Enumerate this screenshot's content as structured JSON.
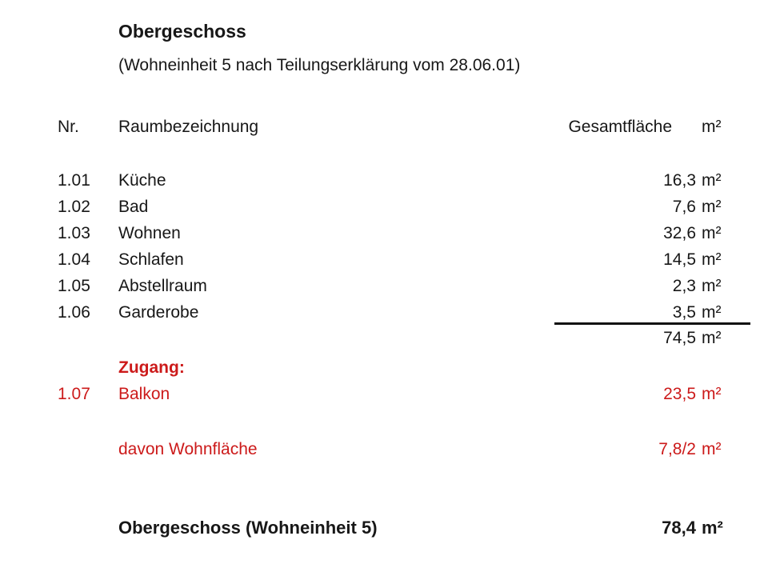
{
  "header": {
    "title": "Obergeschoss",
    "subtitle": "(Wohneinheit 5 nach Teilungserklärung vom 28.06.01)"
  },
  "table": {
    "columns": {
      "nr": "Nr.",
      "name": "Raumbezeichnung",
      "area": "Gesamtfläche",
      "unit": "m²"
    },
    "rows": [
      {
        "nr": "1.01",
        "name": "Küche",
        "value": "16,3",
        "unit": "m²"
      },
      {
        "nr": "1.02",
        "name": "Bad",
        "value": "7,6",
        "unit": "m²"
      },
      {
        "nr": "1.03",
        "name": "Wohnen",
        "value": "32,6",
        "unit": "m²"
      },
      {
        "nr": "1.04",
        "name": "Schlafen",
        "value": "14,5",
        "unit": "m²"
      },
      {
        "nr": "1.05",
        "name": "Abstellraum",
        "value": "2,3",
        "unit": "m²"
      },
      {
        "nr": "1.06",
        "name": "Garderobe",
        "value": "3,5",
        "unit": "m²"
      }
    ],
    "subtotal": {
      "value": "74,5",
      "unit": "m²"
    },
    "zugang": {
      "label": "Zugang:",
      "rows": [
        {
          "nr": "1.07",
          "name": "Balkon",
          "value": "23,5",
          "unit": "m²"
        },
        {
          "nr": "",
          "name": "davon Wohnfläche",
          "value": "7,8/2",
          "unit": "m²"
        }
      ]
    },
    "total": {
      "label": "Obergeschoss (Wohneinheit 5)",
      "value": "78,4",
      "unit": "m²"
    }
  },
  "colors": {
    "accent_red": "#cc1a1a",
    "text": "#171717",
    "background": "#ffffff"
  }
}
